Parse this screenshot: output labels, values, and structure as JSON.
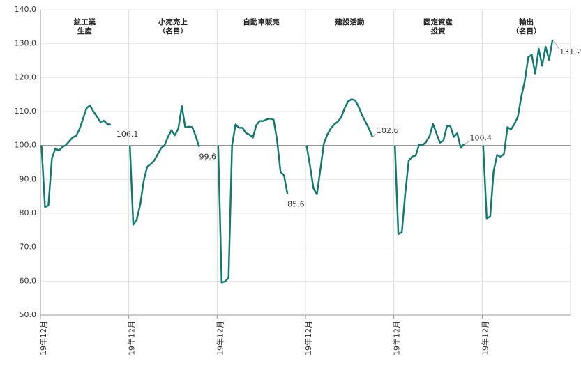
{
  "chart_data": {
    "type": "line",
    "color": "#137a72",
    "ylim": [
      50,
      140
    ],
    "yticks": [
      {
        "value": 50,
        "label": "50.0"
      },
      {
        "value": 60,
        "label": "60.0"
      },
      {
        "value": 70,
        "label": "70.0"
      },
      {
        "value": 80,
        "label": "80.0"
      },
      {
        "value": 90,
        "label": "90.0"
      },
      {
        "value": 100,
        "label": "100.0"
      },
      {
        "value": 110,
        "label": "110.0"
      },
      {
        "value": 120,
        "label": "120.0"
      },
      {
        "value": 130,
        "label": "130.0"
      },
      {
        "value": 140,
        "label": "140.0"
      }
    ],
    "grid": true,
    "panels": [
      {
        "title": [
          "鉱工業",
          "生産"
        ],
        "x_label": "19年12月",
        "values": [
          100,
          81.8,
          82.3,
          96.2,
          99.1,
          98.5,
          99.5,
          100.1,
          101.2,
          102.4,
          102.8,
          104.9,
          107.9,
          111.0,
          111.8,
          110.0,
          108.5,
          106.9,
          107.3,
          106.3,
          106.1
        ]
      },
      {
        "title": [
          "小売売上",
          "（名目）"
        ],
        "x_label": "19年12月",
        "values": [
          100,
          76.6,
          78.2,
          82.6,
          89.5,
          93.7,
          94.5,
          95.5,
          97.3,
          99.2,
          100,
          102.5,
          104.5,
          103.0,
          105.0,
          111.6,
          105.3,
          105.5,
          105.4,
          102.8,
          99.6
        ]
      },
      {
        "title": [
          "自動車販売"
        ],
        "x_label": "19年12月",
        "values": [
          100,
          59.6,
          59.9,
          61.0,
          100,
          106.2,
          105.2,
          105.2,
          103.7,
          103.2,
          102.3,
          106.0,
          107.2,
          107.2,
          107.7,
          107.9,
          107.6,
          101.5,
          92.2,
          91.2,
          85.6
        ]
      },
      {
        "title": [
          "建設活動"
        ],
        "x_label": "19年12月",
        "values": [
          100,
          94.0,
          87.4,
          85.6,
          93.0,
          100.5,
          103.2,
          105.0,
          106.2,
          107.0,
          108.3,
          111.0,
          113.0,
          113.6,
          113.3,
          111.5,
          109.0,
          107.0,
          105.0,
          102.6
        ]
      },
      {
        "title": [
          "固定資産",
          "投資"
        ],
        "x_label": "19年12月",
        "values": [
          100,
          73.9,
          74.4,
          86.0,
          95.5,
          96.7,
          97.0,
          100.2,
          100.1,
          101.0,
          102.7,
          106.3,
          103.5,
          100.8,
          101.4,
          105.6,
          105.8,
          102.5,
          103.6,
          99.3,
          100.4
        ]
      },
      {
        "title": [
          "輸出",
          "（名目）"
        ],
        "x_label": "19年12月",
        "values": [
          100,
          78.5,
          79.0,
          92.4,
          97.2,
          96.6,
          97.5,
          105.4,
          104.7,
          106.3,
          108.5,
          114.5,
          119.0,
          126.0,
          126.7,
          121.2,
          128.5,
          123.5,
          129.1,
          125.2,
          131.2
        ]
      }
    ]
  }
}
